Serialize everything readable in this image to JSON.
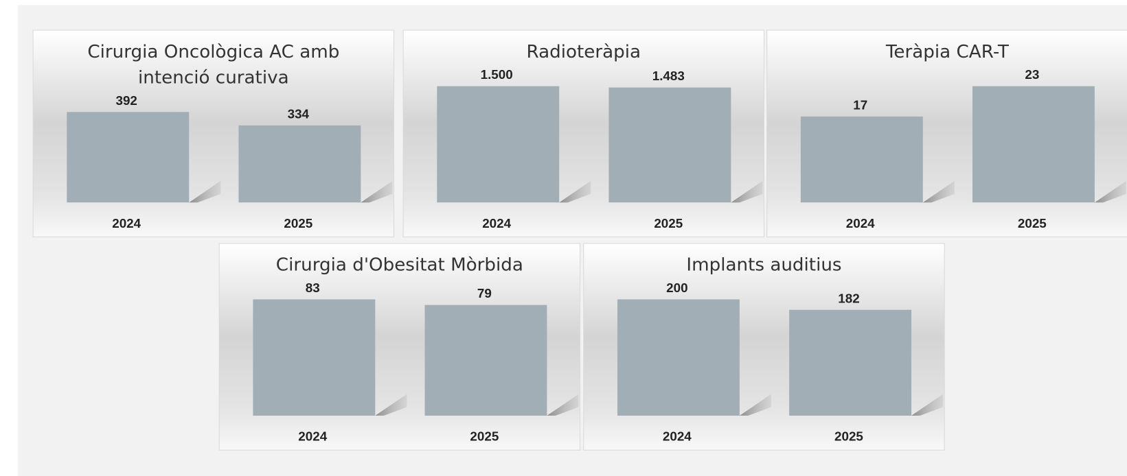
{
  "chart_data": [
    {
      "type": "bar",
      "title": "Cirurgia Oncològica AC amb intenció curativa",
      "categories": [
        "2024",
        "2025"
      ],
      "values": [
        392,
        334
      ],
      "color": "#a2aeb6"
    },
    {
      "type": "bar",
      "title": "Radioteràpia",
      "categories": [
        "2024",
        "2025"
      ],
      "values": [
        1500,
        1483
      ],
      "value_labels": [
        "1.500",
        "1.483"
      ],
      "color": "#a2aeb6"
    },
    {
      "type": "bar",
      "title": "Teràpia CAR-T",
      "categories": [
        "2024",
        "2025"
      ],
      "values": [
        17,
        23
      ],
      "color": "#a2aeb6"
    },
    {
      "type": "bar",
      "title": "Cirurgia d'Obesitat Mòrbida",
      "categories": [
        "2024",
        "2025"
      ],
      "values": [
        83,
        79
      ],
      "color": "#a2aeb6"
    },
    {
      "type": "bar",
      "title": "Implants auditius",
      "categories": [
        "2024",
        "2025"
      ],
      "values": [
        200,
        182
      ],
      "color": "#a2aeb6"
    }
  ]
}
